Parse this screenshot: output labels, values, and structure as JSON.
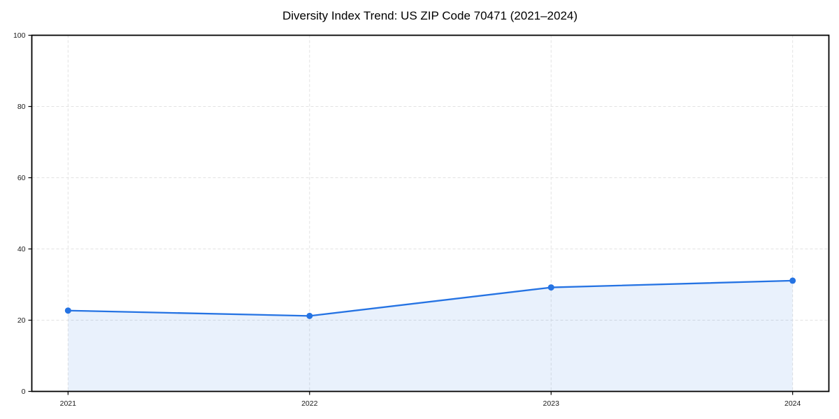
{
  "figure": {
    "title": "Diversity Index Trend: US ZIP Code 70471 (2021–2024)"
  },
  "chart_data": {
    "type": "line",
    "area_fill": true,
    "title": "Diversity Index Trend: US ZIP Code 70471 (2021–2024)",
    "xlabel": "",
    "ylabel": "",
    "categories": [
      2021,
      2022,
      2023,
      2024
    ],
    "series": [
      {
        "name": "Diversity Index",
        "values": [
          22.7,
          21.2,
          29.2,
          31.1
        ]
      }
    ],
    "xticks": [
      "2021",
      "2022",
      "2023",
      "2024"
    ],
    "yticks": [
      0,
      20,
      40,
      60,
      80,
      100
    ],
    "ylim": [
      0,
      100
    ],
    "x_margin": 0.05,
    "grid": true,
    "grid_style": "dashed",
    "legend": "none",
    "marker": "circle",
    "colors": {
      "line": "#2573e3",
      "marker": "#2573e3",
      "fill": "#2573e3",
      "fill_opacity": 0.1,
      "grid": "#e2e2e2",
      "axis": "#000000",
      "tick_text": "#1a1a1a",
      "title_text": "#000000",
      "background": "#ffffff"
    }
  }
}
